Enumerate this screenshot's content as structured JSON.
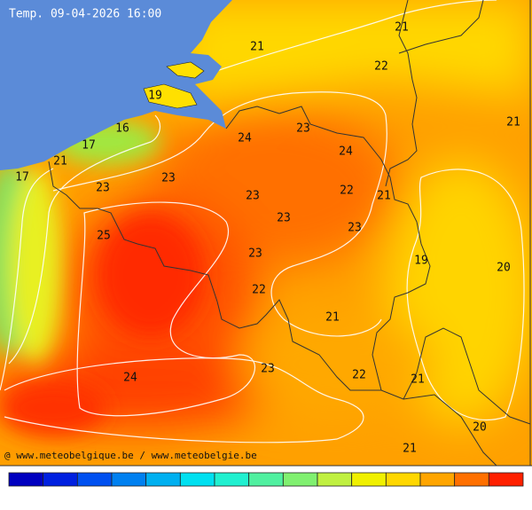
{
  "header": {
    "title": "Temp. 09-04-2026 16:00"
  },
  "credit": "@ www.meteobelgique.be / www.meteobelgie.be",
  "labels": [
    "21",
    "21",
    "22",
    "21",
    "19",
    "16",
    "17",
    "21",
    "17",
    "24",
    "23",
    "24",
    "23",
    "23",
    "22",
    "21",
    "23",
    "23",
    "23",
    "25",
    "19",
    "20",
    "23",
    "22",
    "21",
    "23",
    "22",
    "21",
    "24",
    "20",
    "21"
  ],
  "colorbar": [
    "#0000c0",
    "#0020e0",
    "#0050f0",
    "#0080f0",
    "#00b0f0",
    "#00e0f0",
    "#20f0d0",
    "#50f0a0",
    "#80f070",
    "#c0f040",
    "#f0f000",
    "#ffd700",
    "#ffa500",
    "#ff7000",
    "#ff2000"
  ]
}
